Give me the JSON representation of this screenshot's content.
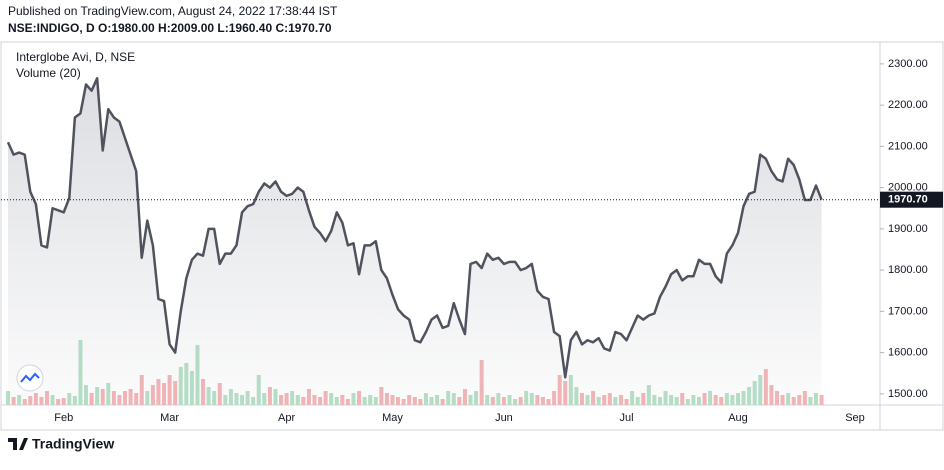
{
  "header": {
    "published": "Published on TradingView.com, August 24, 2022 17:38:44 IST",
    "quote": "NSE:INDIGO, D  O:1980.00 H:2009.00 L:1960.40 C:1970.70"
  },
  "footer": {
    "brand": "TradingView"
  },
  "chart_data": {
    "type": "line",
    "legend": [
      "Interglobe Avi, D, NSE",
      "Volume (20)"
    ],
    "categories": [
      null,
      null,
      null,
      null,
      null,
      null,
      null,
      null,
      null,
      null,
      "Feb",
      null,
      null,
      null,
      null,
      null,
      null,
      null,
      null,
      null,
      null,
      null,
      null,
      null,
      null,
      null,
      null,
      null,
      null,
      "Mar",
      null,
      null,
      null,
      null,
      null,
      null,
      null,
      null,
      null,
      null,
      null,
      null,
      null,
      null,
      null,
      null,
      null,
      null,
      null,
      null,
      "Apr",
      null,
      null,
      null,
      null,
      null,
      null,
      null,
      null,
      null,
      null,
      null,
      null,
      null,
      null,
      null,
      null,
      null,
      null,
      "May",
      null,
      null,
      null,
      null,
      null,
      null,
      null,
      null,
      null,
      null,
      null,
      null,
      null,
      null,
      null,
      null,
      null,
      null,
      null,
      "Jun",
      null,
      null,
      null,
      null,
      null,
      null,
      null,
      null,
      null,
      null,
      null,
      null,
      null,
      null,
      null,
      null,
      null,
      null,
      null,
      null,
      null,
      "Jul",
      null,
      null,
      null,
      null,
      null,
      null,
      null,
      null,
      null,
      null,
      null,
      null,
      null,
      null,
      null,
      null,
      null,
      null,
      null,
      "Aug",
      null,
      null,
      null,
      null,
      null,
      null,
      null,
      null,
      null,
      null,
      null,
      null,
      null,
      null,
      null,
      null,
      null,
      null,
      null,
      null,
      "Sep"
    ],
    "series": [
      {
        "name": "Interglobe Avi",
        "color": "#50535e",
        "values": [
          2110,
          2080,
          2085,
          2080,
          1990,
          1960,
          1860,
          1855,
          1950,
          1945,
          1940,
          1975,
          2170,
          2180,
          2250,
          2235,
          2265,
          2090,
          2190,
          2170,
          2160,
          2120,
          2080,
          2040,
          1830,
          1920,
          1860,
          1730,
          1725,
          1620,
          1600,
          1700,
          1780,
          1825,
          1840,
          1835,
          1900,
          1900,
          1815,
          1840,
          1840,
          1860,
          1940,
          1955,
          1960,
          1990,
          2010,
          2000,
          2015,
          1990,
          1980,
          1985,
          2000,
          1990,
          1945,
          1905,
          1890,
          1870,
          1895,
          1940,
          1915,
          1860,
          1865,
          1790,
          1860,
          1860,
          1870,
          1800,
          1780,
          1740,
          1705,
          1690,
          1680,
          1630,
          1625,
          1650,
          1680,
          1690,
          1660,
          1665,
          1720,
          1680,
          1645,
          1815,
          1820,
          1805,
          1840,
          1825,
          1830,
          1815,
          1820,
          1820,
          1800,
          1805,
          1815,
          1750,
          1735,
          1730,
          1650,
          1640,
          1540,
          1630,
          1650,
          1620,
          1630,
          1625,
          1635,
          1610,
          1605,
          1650,
          1645,
          1630,
          1660,
          1690,
          1680,
          1690,
          1695,
          1735,
          1760,
          1790,
          1800,
          1775,
          1785,
          1785,
          1825,
          1815,
          1815,
          1785,
          1770,
          1840,
          1860,
          1890,
          1955,
          1985,
          1990,
          2080,
          2070,
          2040,
          2020,
          2015,
          2070,
          2055,
          2020,
          1970,
          1970,
          2005,
          1970.7,
          null,
          null,
          null,
          null,
          null,
          null
        ]
      },
      {
        "name": "Volume",
        "axis": "y2",
        "up_color": "#b5dfc6",
        "down_color": "#f4b4b6",
        "values": [
          14,
          8,
          10,
          6,
          9,
          12,
          8,
          14,
          10,
          6,
          7,
          12,
          9,
          65,
          20,
          12,
          18,
          16,
          22,
          14,
          10,
          14,
          16,
          12,
          30,
          14,
          20,
          26,
          22,
          30,
          24,
          38,
          42,
          34,
          60,
          26,
          18,
          14,
          22,
          10,
          16,
          12,
          10,
          14,
          8,
          30,
          12,
          18,
          16,
          10,
          12,
          14,
          10,
          8,
          16,
          10,
          8,
          14,
          12,
          8,
          10,
          6,
          12,
          14,
          8,
          10,
          8,
          18,
          12,
          10,
          8,
          6,
          10,
          8,
          6,
          12,
          8,
          10,
          6,
          14,
          12,
          8,
          16,
          10,
          14,
          45,
          10,
          8,
          12,
          8,
          10,
          6,
          8,
          14,
          12,
          10,
          8,
          6,
          14,
          30,
          24,
          30,
          18,
          12,
          10,
          14,
          8,
          10,
          12,
          8,
          10,
          6,
          14,
          8,
          12,
          20,
          10,
          8,
          14,
          10,
          8,
          12,
          6,
          10,
          8,
          12,
          14,
          10,
          8,
          12,
          10,
          12,
          14,
          18,
          24,
          30,
          36,
          20,
          14,
          10,
          12,
          8,
          10,
          14,
          8,
          12,
          10,
          null,
          null,
          null,
          null,
          null,
          null
        ]
      }
    ],
    "ylim": [
      1473,
      2353
    ],
    "yticks": [
      {
        "value": 1500,
        "label": "1500.00"
      },
      {
        "value": 1600,
        "label": "1600.00"
      },
      {
        "value": 1700,
        "label": "1700.00"
      },
      {
        "value": 1800,
        "label": "1800.00"
      },
      {
        "value": 1900,
        "label": "1900.00"
      },
      {
        "value": 2000,
        "label": "2000.00"
      },
      {
        "value": 2100,
        "label": "2100.00"
      },
      {
        "value": 2200,
        "label": "2200.00"
      },
      {
        "value": 2300,
        "label": "2300.00"
      }
    ],
    "y2lim": [
      0,
      100
    ],
    "last_price": {
      "value": 1970.7,
      "label": "1970.70"
    },
    "last_price_color": "#131722"
  }
}
